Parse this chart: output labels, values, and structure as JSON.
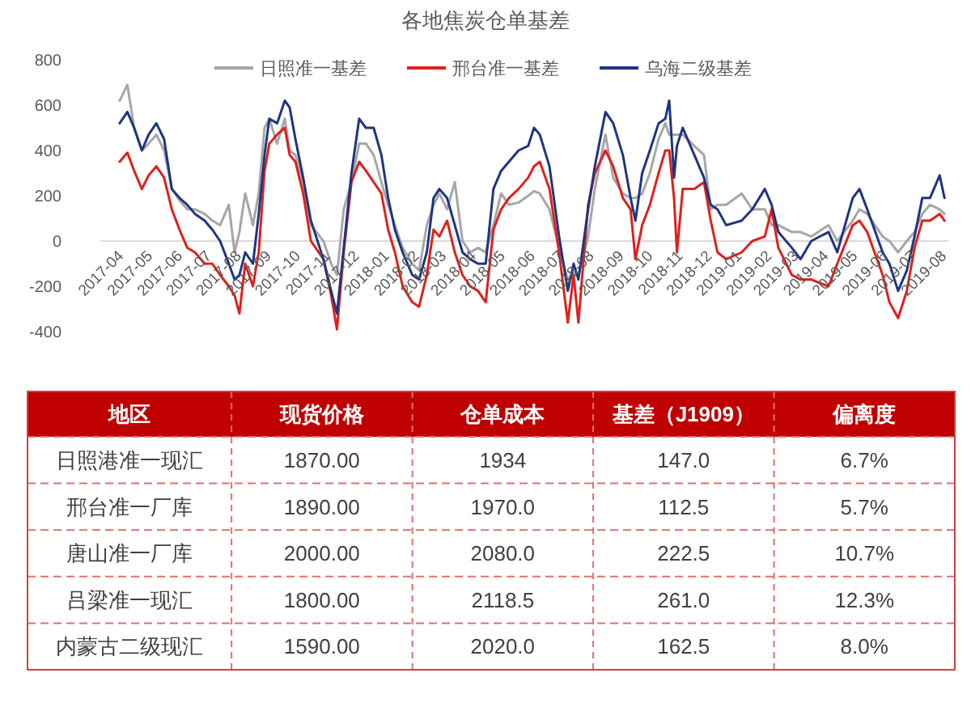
{
  "chart_data": [
    {
      "type": "line",
      "title": "各地焦炭仓单基差",
      "legend": "top",
      "x": [
        "2017-04-04",
        "2017-04-12",
        "2017-04-19",
        "2017-04-27",
        "2017-05-04",
        "2017-05-12",
        "2017-05-20",
        "2017-05-28",
        "2017-06-05",
        "2017-06-13",
        "2017-06-21",
        "2017-07-01",
        "2017-07-09",
        "2017-07-17",
        "2017-07-26",
        "2017-08-01",
        "2017-08-06",
        "2017-08-12",
        "2017-08-20",
        "2017-08-26",
        "2017-09-01",
        "2017-09-06",
        "2017-09-14",
        "2017-09-22",
        "2017-09-27",
        "2017-10-03",
        "2017-10-11",
        "2017-10-19",
        "2017-11-01",
        "2017-11-09",
        "2017-11-15",
        "2017-11-22",
        "2017-11-30",
        "2017-12-08",
        "2017-12-15",
        "2017-12-23",
        "2017-12-31",
        "2018-01-07",
        "2018-01-14",
        "2018-01-22",
        "2018-02-01",
        "2018-02-08",
        "2018-02-16",
        "2018-02-23",
        "2018-03-01",
        "2018-03-09",
        "2018-03-17",
        "2018-03-25",
        "2018-04-02",
        "2018-04-10",
        "2018-04-18",
        "2018-04-26",
        "2018-05-04",
        "2018-05-12",
        "2018-05-22",
        "2018-06-01",
        "2018-06-07",
        "2018-06-13",
        "2018-06-23",
        "2018-07-03",
        "2018-07-12",
        "2018-07-18",
        "2018-07-23",
        "2018-08-02",
        "2018-08-09",
        "2018-08-20",
        "2018-08-28",
        "2018-09-07",
        "2018-09-15",
        "2018-09-20",
        "2018-09-27",
        "2018-10-05",
        "2018-10-14",
        "2018-10-21",
        "2018-10-25",
        "2018-10-30",
        "2018-11-02",
        "2018-11-08",
        "2018-11-20",
        "2018-11-30",
        "2018-12-07",
        "2018-12-14",
        "2018-12-23",
        "2019-01-08",
        "2019-01-19",
        "2019-02-01",
        "2019-02-08",
        "2019-02-15",
        "2019-03-01",
        "2019-03-10",
        "2019-03-21",
        "2019-04-08",
        "2019-04-17",
        "2019-05-03",
        "2019-05-10",
        "2019-05-18",
        "2019-06-03",
        "2019-06-10",
        "2019-06-19",
        "2019-06-28",
        "2019-07-06",
        "2019-07-14",
        "2019-07-22",
        "2019-08-01",
        "2019-08-06"
      ],
      "series": [
        {
          "name": "日照准一基差",
          "color": "#a6a6a6",
          "values": [
            620,
            690,
            500,
            400,
            430,
            470,
            400,
            230,
            180,
            140,
            140,
            120,
            90,
            70,
            160,
            -50,
            40,
            210,
            70,
            210,
            500,
            540,
            430,
            540,
            400,
            380,
            260,
            70,
            0,
            -100,
            -150,
            140,
            260,
            430,
            430,
            380,
            260,
            160,
            70,
            -30,
            -100,
            -130,
            70,
            160,
            210,
            140,
            260,
            0,
            -50,
            -30,
            -50,
            70,
            210,
            160,
            170,
            200,
            220,
            210,
            140,
            -30,
            -170,
            -140,
            -150,
            20,
            230,
            470,
            280,
            210,
            190,
            190,
            210,
            300,
            450,
            520,
            470,
            470,
            470,
            470,
            420,
            380,
            140,
            160,
            160,
            210,
            140,
            140,
            70,
            70,
            40,
            40,
            20,
            70,
            0,
            90,
            140,
            120,
            20,
            0,
            -50,
            0,
            40,
            120,
            160,
            140,
            120
          ]
        },
        {
          "name": "邢台准一基差",
          "color": "#e0201b",
          "values": [
            350,
            390,
            310,
            230,
            290,
            330,
            280,
            140,
            50,
            -30,
            -50,
            -100,
            -100,
            -150,
            -200,
            -240,
            -320,
            -100,
            -200,
            -50,
            310,
            430,
            470,
            500,
            380,
            350,
            210,
            0,
            -80,
            -240,
            -390,
            -50,
            260,
            350,
            310,
            260,
            210,
            50,
            -50,
            -200,
            -270,
            -290,
            -150,
            50,
            20,
            90,
            -50,
            -150,
            -200,
            -220,
            -270,
            50,
            140,
            190,
            230,
            280,
            330,
            350,
            230,
            -50,
            -360,
            -150,
            -360,
            160,
            300,
            400,
            330,
            190,
            140,
            -80,
            70,
            160,
            300,
            400,
            400,
            190,
            -50,
            230,
            230,
            260,
            90,
            -50,
            -80,
            -50,
            0,
            20,
            140,
            -30,
            -150,
            -170,
            -170,
            -200,
            -100,
            70,
            90,
            40,
            -150,
            -270,
            -340,
            -220,
            -30,
            90,
            90,
            120,
            90
          ]
        },
        {
          "name": "乌海二级基差",
          "color": "#1f3580",
          "values": [
            520,
            570,
            500,
            400,
            470,
            520,
            450,
            230,
            190,
            160,
            120,
            90,
            50,
            0,
            -100,
            -170,
            -150,
            -50,
            -100,
            120,
            380,
            540,
            520,
            620,
            590,
            450,
            280,
            90,
            -80,
            -220,
            -320,
            -30,
            300,
            540,
            500,
            500,
            380,
            190,
            50,
            -50,
            -150,
            -170,
            -50,
            190,
            230,
            190,
            70,
            -50,
            -80,
            -100,
            -100,
            230,
            310,
            350,
            400,
            420,
            500,
            470,
            330,
            20,
            -220,
            -100,
            -170,
            140,
            330,
            570,
            520,
            380,
            190,
            90,
            300,
            400,
            520,
            540,
            620,
            280,
            420,
            500,
            380,
            280,
            160,
            140,
            70,
            90,
            140,
            230,
            160,
            40,
            -30,
            -80,
            0,
            40,
            -50,
            190,
            230,
            140,
            -50,
            -100,
            -220,
            -130,
            20,
            190,
            190,
            290,
            190
          ]
        }
      ],
      "xlim": [
        "2017-03-15",
        "2019-08-10"
      ],
      "xticks": [
        "2017-04",
        "2017-05",
        "2017-06",
        "2017-07",
        "2017-08",
        "2017-09",
        "2017-10",
        "2017-11",
        "2017-12",
        "2018-01",
        "2018-02",
        "2018-03",
        "2018-04",
        "2018-05",
        "2018-06",
        "2018-07",
        "2018-08",
        "2018-09",
        "2018-10",
        "2018-11",
        "2018-12",
        "2019-01",
        "2019-02",
        "2019-03",
        "2019-04",
        "2019-05",
        "2019-06",
        "2019-07",
        "2019-08"
      ],
      "ylim": [
        -400,
        800
      ],
      "yticks": [
        -400,
        -200,
        0,
        200,
        400,
        600,
        800
      ]
    },
    {
      "type": "other",
      "ylabel": "地区",
      "categories": [
        "现货价格",
        "仓单成本",
        "基差（J1909）",
        "偏离度"
      ],
      "y_categories": [
        "日照港准一现汇",
        "邢台准一厂库",
        "唐山准一厂库",
        "吕梁准一现汇",
        "内蒙古二级现汇"
      ],
      "cell_labels": [
        [
          "1870.00",
          "1934",
          "147.0",
          "6.7%"
        ],
        [
          "1890.00",
          "1970.0",
          "112.5",
          "5.7%"
        ],
        [
          "2000.00",
          "2080.0",
          "222.5",
          "10.7%"
        ],
        [
          "1800.00",
          "2118.5",
          "261.0",
          "12.3%"
        ],
        [
          "1590.00",
          "2020.0",
          "162.5",
          "8.0%"
        ]
      ]
    }
  ]
}
